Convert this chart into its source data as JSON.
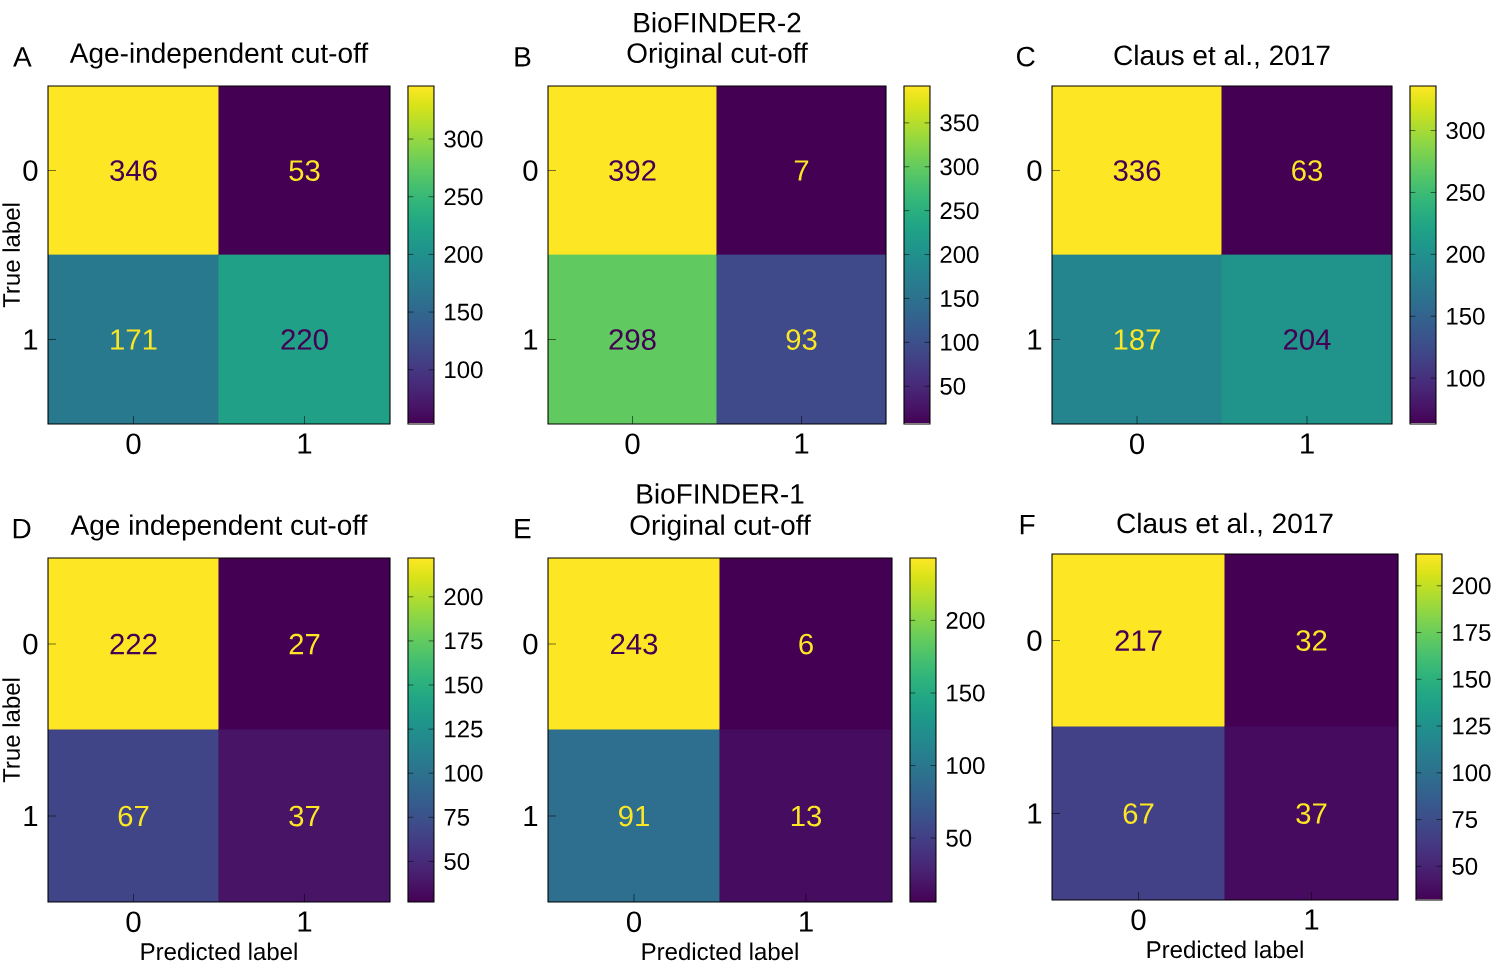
{
  "chart_data": [
    {
      "type": "heatmap",
      "title": "Age-independent cut-off",
      "ylabel": "True label",
      "annotations": [
        "A"
      ],
      "categories": [
        "0",
        "1"
      ],
      "y_categories": [
        "0",
        "1"
      ],
      "cells": [
        [
          346,
          53
        ],
        [
          171,
          220
        ]
      ],
      "data_labels": true,
      "clim": [
        53,
        346
      ],
      "cticks": [
        100,
        150,
        200,
        250,
        300
      ]
    },
    {
      "type": "heatmap",
      "title": "Original cut-off",
      "subtitle": "BioFINDER-2",
      "annotations": [
        "B"
      ],
      "categories": [
        "0",
        "1"
      ],
      "y_categories": [
        "0",
        "1"
      ],
      "cells": [
        [
          392,
          7
        ],
        [
          298,
          93
        ]
      ],
      "data_labels": true,
      "clim": [
        7,
        392
      ],
      "cticks": [
        50,
        100,
        150,
        200,
        250,
        300,
        350
      ]
    },
    {
      "type": "heatmap",
      "title": "Claus et al., 2017",
      "annotations": [
        "C"
      ],
      "categories": [
        "0",
        "1"
      ],
      "y_categories": [
        "0",
        "1"
      ],
      "cells": [
        [
          336,
          63
        ],
        [
          187,
          204
        ]
      ],
      "data_labels": true,
      "clim": [
        63,
        336
      ],
      "cticks": [
        100,
        150,
        200,
        250,
        300
      ]
    },
    {
      "type": "heatmap",
      "title": "Age independent cut-off",
      "xlabel": "Predicted label",
      "ylabel": "True label",
      "annotations": [
        "D"
      ],
      "categories": [
        "0",
        "1"
      ],
      "y_categories": [
        "0",
        "1"
      ],
      "cells": [
        [
          222,
          27
        ],
        [
          67,
          37
        ]
      ],
      "data_labels": true,
      "clim": [
        27,
        222
      ],
      "cticks": [
        50,
        75,
        100,
        125,
        150,
        175,
        200
      ]
    },
    {
      "type": "heatmap",
      "title": "Original cut-off",
      "subtitle": "BioFINDER-1",
      "xlabel": "Predicted label",
      "annotations": [
        "E"
      ],
      "categories": [
        "0",
        "1"
      ],
      "y_categories": [
        "0",
        "1"
      ],
      "cells": [
        [
          243,
          6
        ],
        [
          91,
          13
        ]
      ],
      "data_labels": true,
      "clim": [
        6,
        243
      ],
      "cticks": [
        50,
        100,
        150,
        200
      ]
    },
    {
      "type": "heatmap",
      "title": "Claus et al., 2017",
      "xlabel": "Predicted label",
      "annotations": [
        "F"
      ],
      "categories": [
        "0",
        "1"
      ],
      "y_categories": [
        "0",
        "1"
      ],
      "cells": [
        [
          217,
          32
        ],
        [
          67,
          37
        ]
      ],
      "data_labels": true,
      "clim": [
        32,
        217
      ],
      "cticks": [
        50,
        75,
        100,
        125,
        150,
        175,
        200
      ]
    }
  ]
}
